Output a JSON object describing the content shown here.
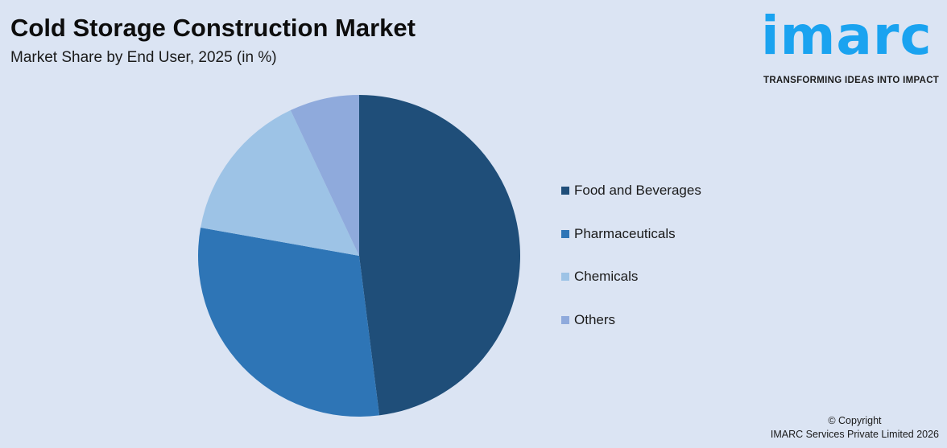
{
  "header": {
    "title": "Cold Storage Construction Market",
    "subtitle": "Market Share by End User, 2025 (in %)"
  },
  "logo": {
    "word": "imarc",
    "tagline": "TRANSFORMING IDEAS INTO IMPACT",
    "color": "#1aa3f0"
  },
  "footer": {
    "copyright_line1": "© Copyright",
    "copyright_line2": "IMARC Services Private Limited 2026"
  },
  "chart_data": {
    "type": "pie",
    "title": "Cold Storage Construction Market",
    "subtitle": "Market Share by End User, 2025 (in %)",
    "categories": [
      "Food and Beverages",
      "Pharmaceuticals",
      "Chemicals",
      "Others"
    ],
    "values": [
      48.0,
      29.8,
      15.2,
      7.0
    ],
    "colors": [
      "#1f4e79",
      "#2e75b6",
      "#9dc3e6",
      "#8faadc"
    ],
    "start_angle": "12 o'clock, clockwise",
    "legend_position": "right",
    "data_labels": false
  }
}
